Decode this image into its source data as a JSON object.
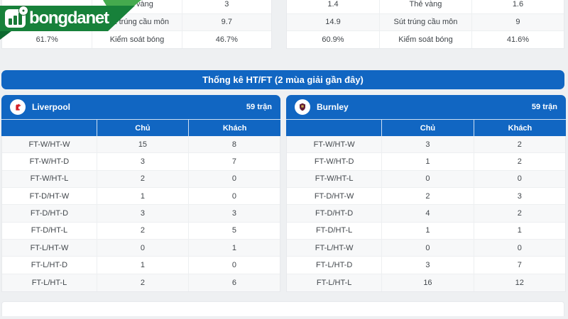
{
  "brand": {
    "name": "bongdanet"
  },
  "top_stats": {
    "left": {
      "rows": [
        {
          "home": "",
          "label": "Thẻ vàng",
          "away": "3"
        },
        {
          "home": "",
          "label": "Sút trúng cầu môn",
          "away": "9.7"
        },
        {
          "home": "61.7%",
          "label": "Kiểm soát bóng",
          "away": "46.7%"
        }
      ]
    },
    "right": {
      "rows": [
        {
          "home": "1.4",
          "label": "Thẻ vàng",
          "away": "1.6"
        },
        {
          "home": "14.9",
          "label": "Sút trúng cầu môn",
          "away": "9"
        },
        {
          "home": "60.9%",
          "label": "Kiểm soát bóng",
          "away": "41.6%"
        }
      ]
    }
  },
  "section": {
    "title": "Thống kê HT/FT (2 mùa giải gần đây)"
  },
  "panels": [
    {
      "team": "Liverpool",
      "matches": "59 trận",
      "columns": {
        "home": "Chủ",
        "away": "Khách"
      },
      "rows": [
        {
          "label": "FT-W/HT-W",
          "home": "15",
          "away": "8"
        },
        {
          "label": "FT-W/HT-D",
          "home": "3",
          "away": "7"
        },
        {
          "label": "FT-W/HT-L",
          "home": "2",
          "away": "0"
        },
        {
          "label": "FT-D/HT-W",
          "home": "1",
          "away": "0"
        },
        {
          "label": "FT-D/HT-D",
          "home": "3",
          "away": "3"
        },
        {
          "label": "FT-D/HT-L",
          "home": "2",
          "away": "5"
        },
        {
          "label": "FT-L/HT-W",
          "home": "0",
          "away": "1"
        },
        {
          "label": "FT-L/HT-D",
          "home": "1",
          "away": "0"
        },
        {
          "label": "FT-L/HT-L",
          "home": "2",
          "away": "6"
        }
      ]
    },
    {
      "team": "Burnley",
      "matches": "59 trận",
      "columns": {
        "home": "Chủ",
        "away": "Khách"
      },
      "rows": [
        {
          "label": "FT-W/HT-W",
          "home": "3",
          "away": "2"
        },
        {
          "label": "FT-W/HT-D",
          "home": "1",
          "away": "2"
        },
        {
          "label": "FT-W/HT-L",
          "home": "0",
          "away": "0"
        },
        {
          "label": "FT-D/HT-W",
          "home": "2",
          "away": "3"
        },
        {
          "label": "FT-D/HT-D",
          "home": "4",
          "away": "2"
        },
        {
          "label": "FT-D/HT-L",
          "home": "1",
          "away": "1"
        },
        {
          "label": "FT-L/HT-W",
          "home": "0",
          "away": "0"
        },
        {
          "label": "FT-L/HT-D",
          "home": "3",
          "away": "7"
        },
        {
          "label": "FT-L/HT-L",
          "home": "16",
          "away": "12"
        }
      ]
    }
  ],
  "colors": {
    "primary_blue": "#1166c2",
    "brand_green_dark": "#17813a",
    "brand_green_light": "#45aa4e",
    "row_stripe": "#f7f8f9",
    "page_bg": "#eef0f2",
    "liverpool_red": "#d32027",
    "burnley_claret": "#611c35"
  }
}
